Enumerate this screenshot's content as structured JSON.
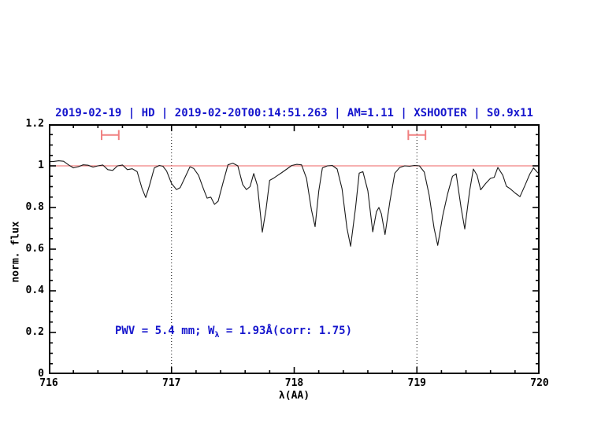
{
  "title": {
    "text": "2019-02-19 | HD | 2019-02-20T00:14:51.263 | AM=1.11 | XSHOOTER | S0.9x11",
    "color": "#1515cd"
  },
  "annotation": {
    "part1": "PWV = 5.4 mm; W",
    "sub": "λ",
    "part2": " = 1.93Å(corr: 1.75)",
    "color": "#1515cd"
  },
  "colors": {
    "spectrum": "#1a1a1a",
    "reference_red": "#f08080",
    "frame": "#000000"
  },
  "chart_data": {
    "type": "line",
    "title": "2019-02-19 | HD | 2019-02-20T00:14:51.263 | AM=1.11 | XSHOOTER | S0.9x11",
    "xlabel": "λ(AA)",
    "ylabel": "norm. flux",
    "xlim": [
      716,
      720
    ],
    "ylim": [
      0,
      1.2
    ],
    "xticks": [
      716,
      717,
      718,
      719,
      720
    ],
    "xtick_labels": [
      "716",
      "717",
      "718",
      "719",
      "720"
    ],
    "yticks": [
      0,
      0.2,
      0.4,
      0.6,
      0.8,
      1,
      1.2
    ],
    "ytick_labels": [
      "0",
      "0.2",
      "0.4",
      "0.6",
      "0.8",
      "1",
      "1.2"
    ],
    "x_minor_step": 0.2,
    "y_minor_step": 0.05,
    "grid": false,
    "legend": "none",
    "dotted_vlines": [
      717,
      719
    ],
    "reference_line": {
      "y": 1.0
    },
    "range_markers": [
      {
        "x": 716.5,
        "y": 1.148,
        "halfwidth": 0.07,
        "capheight": 0.024
      },
      {
        "x": 719.0,
        "y": 1.148,
        "halfwidth": 0.07,
        "capheight": 0.024
      }
    ],
    "annotation_text": "PWV = 5.4 mm; W_λ = 1.93Å(corr: 1.75)",
    "annotation_position": {
      "x": 716.54,
      "y": 0.2
    },
    "series": [
      {
        "name": "telluric-spectrum",
        "x": [
          716.0,
          716.04,
          716.08,
          716.12,
          716.16,
          716.2,
          716.24,
          716.28,
          716.32,
          716.36,
          716.4,
          716.44,
          716.48,
          716.52,
          716.56,
          716.6,
          716.64,
          716.68,
          716.72,
          716.76,
          716.79,
          716.82,
          716.86,
          716.9,
          716.93,
          716.96,
          717.0,
          717.04,
          717.07,
          717.11,
          717.15,
          717.18,
          717.22,
          717.26,
          717.29,
          717.32,
          717.35,
          717.38,
          717.42,
          717.46,
          717.5,
          717.54,
          717.58,
          717.61,
          717.64,
          717.67,
          717.7,
          717.74,
          717.77,
          717.8,
          717.83,
          717.86,
          717.9,
          717.94,
          717.98,
          718.02,
          718.06,
          718.1,
          718.14,
          718.17,
          718.2,
          718.23,
          718.27,
          718.31,
          718.35,
          718.39,
          718.43,
          718.46,
          718.5,
          718.53,
          718.56,
          718.6,
          718.64,
          718.67,
          718.69,
          718.71,
          718.74,
          718.78,
          718.82,
          718.86,
          718.9,
          718.94,
          718.98,
          719.02,
          719.06,
          719.1,
          719.14,
          719.17,
          719.21,
          719.25,
          719.29,
          719.32,
          719.36,
          719.39,
          719.43,
          719.46,
          719.49,
          719.52,
          719.56,
          719.6,
          719.63,
          719.66,
          719.7,
          719.73,
          719.76,
          719.8,
          719.84,
          719.88,
          719.92,
          719.95,
          719.98,
          720.0
        ],
        "y": [
          1.02,
          1.021,
          1.024,
          1.022,
          1.005,
          0.99,
          0.996,
          1.005,
          1.003,
          0.994,
          1.0,
          1.004,
          0.982,
          0.978,
          1.0,
          1.004,
          0.982,
          0.986,
          0.972,
          0.89,
          0.848,
          0.905,
          0.99,
          1.002,
          0.998,
          0.975,
          0.915,
          0.886,
          0.895,
          0.945,
          0.995,
          0.988,
          0.955,
          0.89,
          0.845,
          0.85,
          0.815,
          0.83,
          0.92,
          1.005,
          1.013,
          1.0,
          0.91,
          0.886,
          0.9,
          0.963,
          0.905,
          0.682,
          0.79,
          0.93,
          0.94,
          0.952,
          0.968,
          0.985,
          1.002,
          1.007,
          1.005,
          0.94,
          0.79,
          0.708,
          0.88,
          0.99,
          1.0,
          1.002,
          0.985,
          0.89,
          0.7,
          0.614,
          0.8,
          0.965,
          0.972,
          0.88,
          0.683,
          0.78,
          0.8,
          0.77,
          0.67,
          0.83,
          0.965,
          0.992,
          1.0,
          0.998,
          1.002,
          1.0,
          0.97,
          0.86,
          0.7,
          0.618,
          0.76,
          0.865,
          0.95,
          0.962,
          0.8,
          0.697,
          0.88,
          0.985,
          0.955,
          0.885,
          0.915,
          0.94,
          0.945,
          0.992,
          0.955,
          0.902,
          0.89,
          0.87,
          0.852,
          0.905,
          0.96,
          0.99,
          0.97,
          0.958
        ]
      }
    ]
  }
}
